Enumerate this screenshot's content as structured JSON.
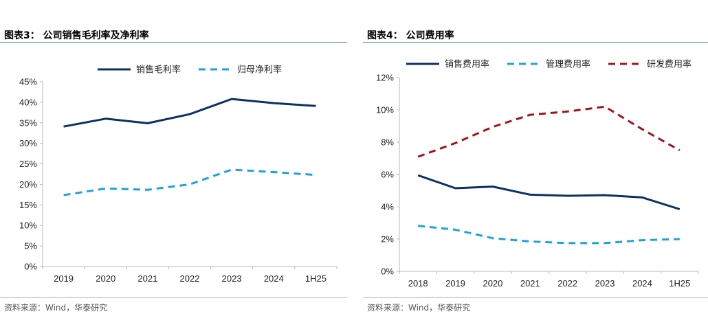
{
  "charts": [
    {
      "figure_title": "图表3：  公司销售毛利率及净利率",
      "source": "资料来源：Wind，华泰研究"
    },
    {
      "figure_title": "图表4：  公司费用率",
      "source": "资料来源：Wind，华泰研究"
    }
  ],
  "colors": {
    "navy": "#0b2f66",
    "light_blue": "#1aa3e0",
    "dark_red": "#a3111a",
    "axis": "#b8b8b8"
  },
  "chart_data": [
    {
      "type": "line",
      "title": "公司销售毛利率及净利率",
      "categories": [
        "2019",
        "2020",
        "2021",
        "2022",
        "2023",
        "2024",
        "1H25"
      ],
      "series": [
        {
          "name": "销售毛利率",
          "values": [
            34.1,
            36.0,
            34.9,
            37.1,
            40.8,
            39.8,
            39.1
          ],
          "color": "#0b2f66",
          "dash": "solid"
        },
        {
          "name": "归母净利率",
          "values": [
            17.4,
            19.0,
            18.7,
            20.0,
            23.6,
            23.0,
            22.3
          ],
          "color": "#1aa3e0",
          "dash": "dashed"
        }
      ],
      "y_ticks": [
        "0%",
        "5%",
        "10%",
        "15%",
        "20%",
        "25%",
        "30%",
        "35%",
        "40%",
        "45%"
      ],
      "ylim": [
        0,
        45
      ],
      "xlabel": "",
      "ylabel": "",
      "legend_position": "top-center"
    },
    {
      "type": "line",
      "title": "公司费用率",
      "categories": [
        "2018",
        "2019",
        "2020",
        "2021",
        "2022",
        "2023",
        "2024",
        "1H25"
      ],
      "series": [
        {
          "name": "销售费用率",
          "values": [
            5.95,
            5.15,
            5.25,
            4.75,
            4.68,
            4.72,
            4.58,
            3.85
          ],
          "color": "#0b2f66",
          "dash": "solid"
        },
        {
          "name": "管理费用率",
          "values": [
            2.82,
            2.58,
            2.05,
            1.85,
            1.75,
            1.75,
            1.93,
            2.0
          ],
          "color": "#1aa3e0",
          "dash": "dashed"
        },
        {
          "name": "研发费用率",
          "values": [
            7.1,
            7.95,
            8.95,
            9.7,
            9.9,
            10.2,
            8.8,
            7.5
          ],
          "color": "#a3111a",
          "dash": "dashed"
        }
      ],
      "y_ticks": [
        "0%",
        "2%",
        "4%",
        "6%",
        "8%",
        "10%",
        "12%"
      ],
      "ylim": [
        0,
        12
      ],
      "xlabel": "",
      "ylabel": "",
      "legend_position": "top-center"
    }
  ]
}
